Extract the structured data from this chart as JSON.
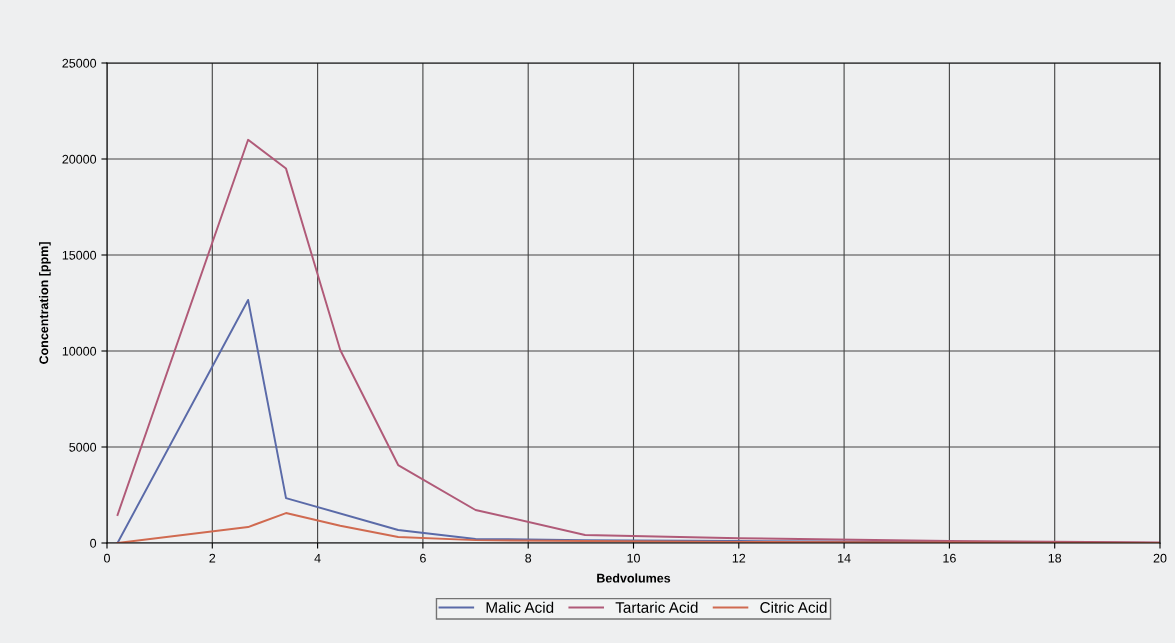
{
  "chart_data": {
    "type": "line",
    "xlabel": "Bedvolumes",
    "ylabel": "Concentration [ppm]",
    "xlim": [
      0,
      20
    ],
    "xticks": [
      0,
      2,
      4,
      6,
      8,
      10,
      12,
      14,
      16,
      18,
      20
    ],
    "ylim": [
      0,
      25000
    ],
    "yticks": [
      0,
      5000,
      10000,
      15000,
      20000,
      25000
    ],
    "grid": true,
    "legend": "bottom",
    "marker": "none",
    "line_style": "solid",
    "series": [
      {
        "name": "Malic Acid",
        "color": "#5a6aa8",
        "x": [
          0.2,
          2.68,
          3.4,
          5.53,
          7.0,
          9.08,
          12,
          16,
          20
        ],
        "values": [
          0,
          12660,
          2340,
          680,
          210,
          150,
          100,
          50,
          0
        ]
      },
      {
        "name": "Tartaric Acid",
        "color": "#b05a78",
        "x": [
          0.2,
          2.68,
          3.4,
          4.43,
          5.53,
          7.0,
          9.08,
          12,
          16,
          20
        ],
        "values": [
          1460,
          21000,
          19500,
          10050,
          4060,
          1720,
          420,
          250,
          100,
          30
        ]
      },
      {
        "name": "Citric Acid",
        "color": "#d06a50",
        "x": [
          0.2,
          2.68,
          3.4,
          4.43,
          5.53,
          7.0,
          9.08,
          12,
          16,
          20
        ],
        "values": [
          0,
          830,
          1560,
          900,
          310,
          150,
          100,
          60,
          30,
          0
        ]
      }
    ]
  }
}
